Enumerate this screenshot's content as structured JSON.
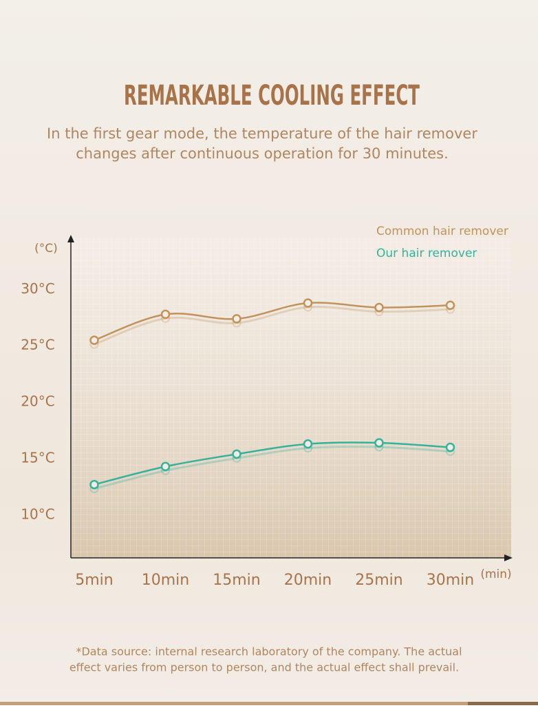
{
  "chart_data": {
    "type": "line",
    "title": "REMARKABLE COOLING EFFECT",
    "subtitle": [
      "In the first gear mode, the temperature of the hair remover",
      "changes after continuous operation for 30 minutes."
    ],
    "y_label": "(°C)",
    "x_label": "(min)",
    "categories": [
      "5min",
      "10min",
      "15min",
      "20min",
      "25min",
      "30min"
    ],
    "series": [
      {
        "name": "Common hair remover",
        "color": "#c1925a",
        "values": [
          25.5,
          27.8,
          27.4,
          28.8,
          28.4,
          28.6
        ]
      },
      {
        "name": "Our hair remover",
        "color": "#35b29a",
        "values": [
          12.7,
          14.3,
          15.4,
          16.3,
          16.4,
          16.0
        ]
      }
    ],
    "ylim": [
      6.2,
      34.6
    ],
    "yticks": [
      {
        "value": 10,
        "label": "10°C"
      },
      {
        "value": 15,
        "label": "15°C"
      },
      {
        "value": 20,
        "label": "20°C"
      },
      {
        "value": 25,
        "label": "25°C"
      },
      {
        "value": 30,
        "label": "30°C"
      }
    ],
    "footnote": [
      "*Data source: internal research laboratory of the company. The actual",
      "effect varies from person to person, and the actual effect shall prevail."
    ]
  }
}
